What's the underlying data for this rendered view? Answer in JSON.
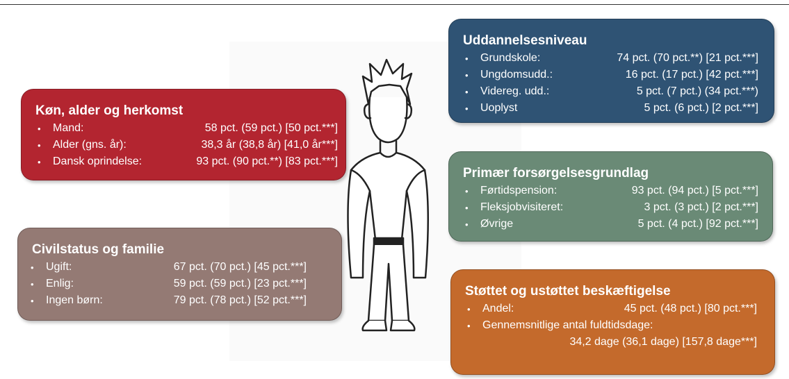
{
  "boxes": [
    {
      "title": "Køn, alder og herkomst",
      "items": [
        {
          "label": "Mand:",
          "value": "58 pct. (59 pct.) [50 pct.***]"
        },
        {
          "label": "Alder (gns. år):",
          "value": "38,3 år (38,8 år) [41,0 år***]"
        },
        {
          "label": "Dansk oprindelse:",
          "value": "93 pct. (90 pct.**) [83 pct.***]"
        }
      ]
    },
    {
      "title": "Civilstatus og familie",
      "items": [
        {
          "label": "Ugift:",
          "value": "67 pct. (70 pct.) [45 pct.***]"
        },
        {
          "label": "Enlig:",
          "value": "59 pct. (59 pct.) [23 pct.***]"
        },
        {
          "label": "Ingen børn:",
          "value": "79 pct. (78 pct.) [52 pct.***]"
        }
      ]
    },
    {
      "title": "Uddannelsesniveau",
      "items": [
        {
          "label": "Grundskole:",
          "value": "74 pct. (70 pct.**) [21 pct.***]"
        },
        {
          "label": "Ungdomsudd.:",
          "value": "16 pct. (17 pct.) [42 pct.***]"
        },
        {
          "label": "Videreg. udd.:",
          "value": "5 pct. (7 pct.) (34 pct.***)"
        },
        {
          "label": "Uoplyst",
          "value": "5 pct. (6 pct.) [2 pct.***]"
        }
      ]
    },
    {
      "title": "Primær forsørgelsesgrundlag",
      "items": [
        {
          "label": "Førtidspension:",
          "value": "93 pct. (94 pct.) [5 pct.***]"
        },
        {
          "label": "Fleksjobvisiteret:",
          "value": "3 pct. (3 pct.) [2 pct.***]"
        },
        {
          "label": "Øvrige",
          "value": "5 pct. (4 pct.) [92 pct.***]"
        }
      ]
    },
    {
      "title": "Støttet og ustøttet beskæftigelse",
      "items": [
        {
          "label": "Andel:",
          "value": "45 pct. (48 pct.) [80 pct.***]"
        },
        {
          "label": "Gennemsnitlige antal fuldtidsdage:",
          "value": "34,2 dage (36,1 dage) [157,8 dage***]"
        }
      ]
    }
  ]
}
